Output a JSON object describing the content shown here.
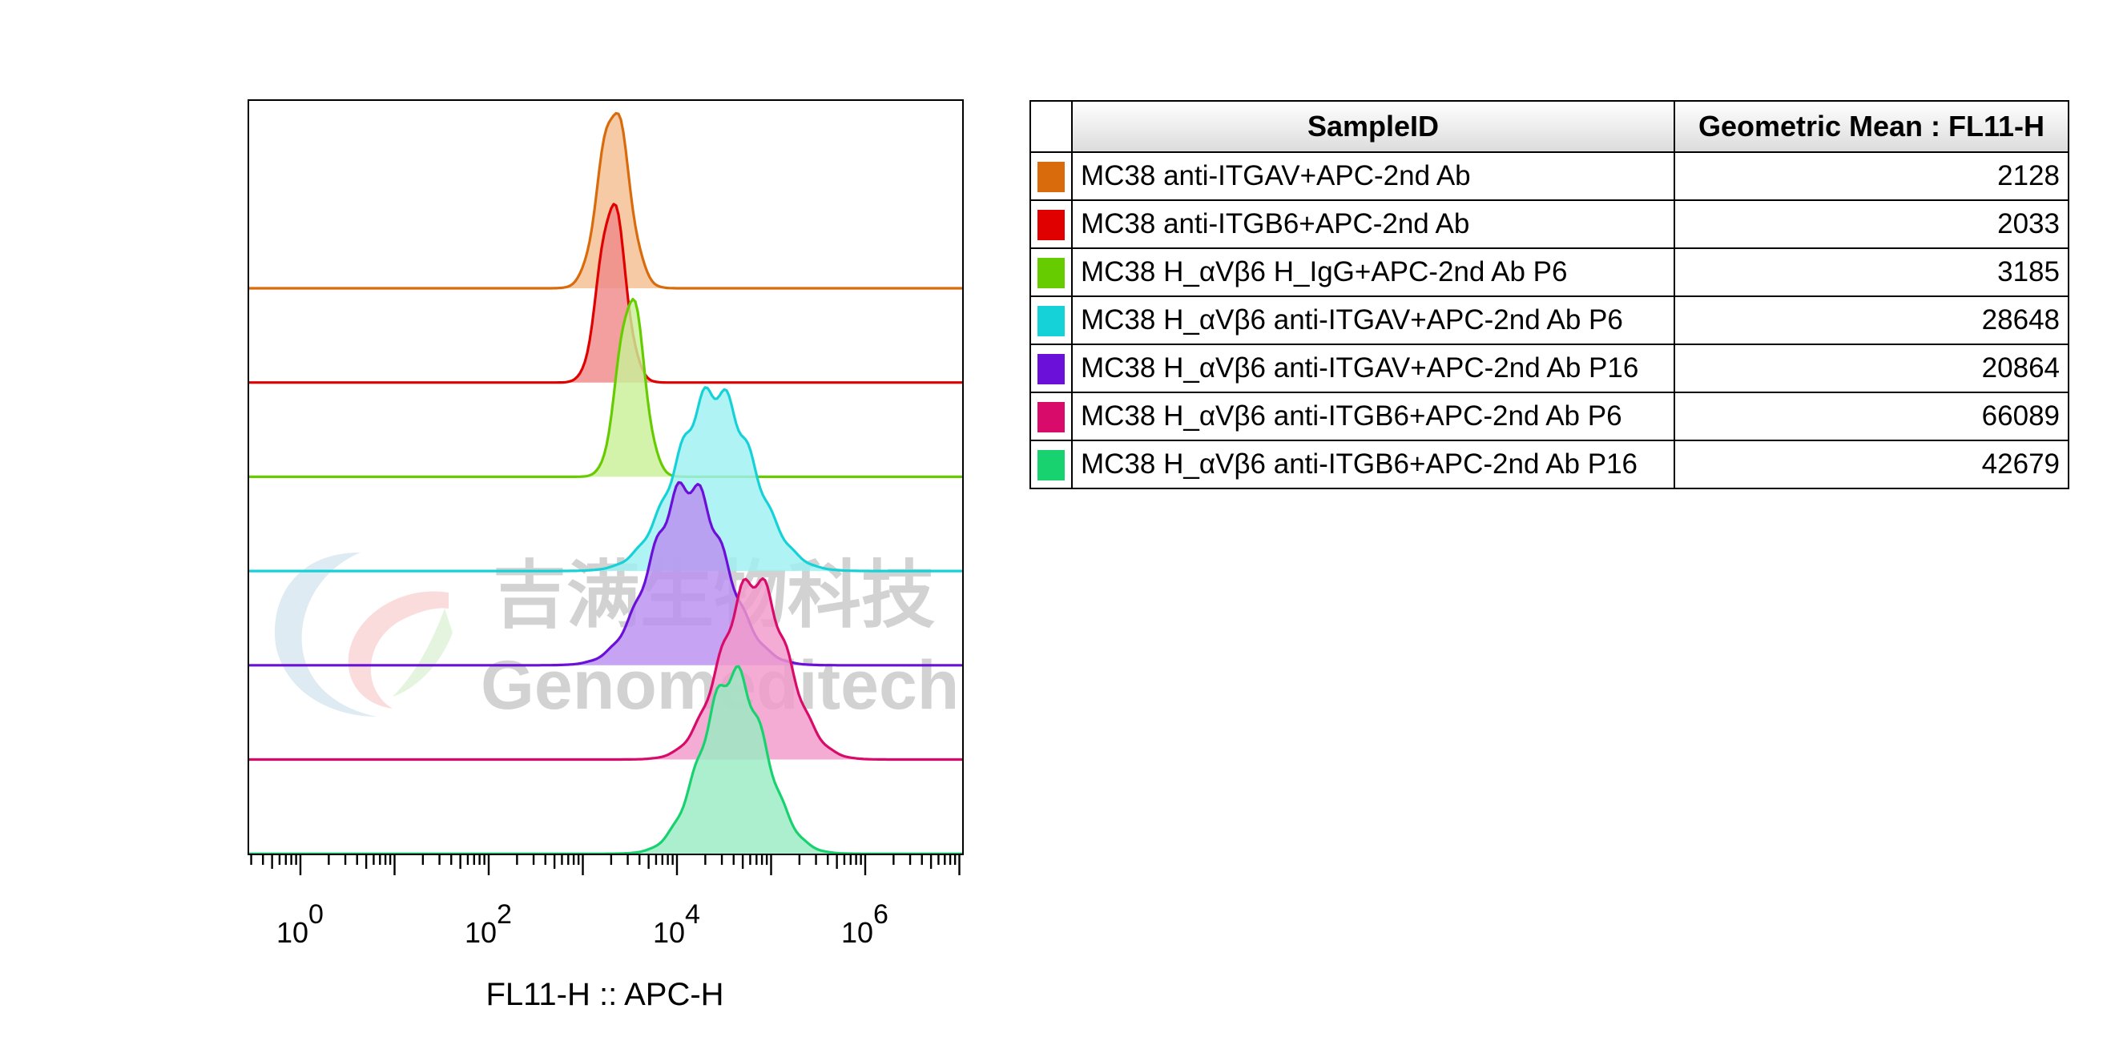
{
  "chart_data": {
    "type": "histogram-overlay",
    "xlabel": "FL11-H :: APC-H",
    "x_scale": "biexponential",
    "x_ticks": [
      {
        "base": "10",
        "exp": "0",
        "value": 1
      },
      {
        "base": "10",
        "exp": "2",
        "value": 100
      },
      {
        "base": "10",
        "exp": "4",
        "value": 10000
      },
      {
        "base": "10",
        "exp": "6",
        "value": 1000000
      }
    ],
    "series": [
      {
        "name": "MC38 anti-ITGAV+APC-2nd Ab",
        "color": "#d96b0c",
        "fill": "#f3be90",
        "geometric_mean": "2128",
        "peak_log10": 3.33,
        "width_log10": 0.16
      },
      {
        "name": "MC38 anti-ITGB6+APC-2nd Ab",
        "color": "#e00000",
        "fill": "#f08a8a",
        "geometric_mean": "2033",
        "peak_log10": 3.31,
        "width_log10": 0.14
      },
      {
        "name": "MC38 H_αVβ6 H_IgG+APC-2nd Ab P6",
        "color": "#66cc00",
        "fill": "#c9ef97",
        "geometric_mean": "3185",
        "peak_log10": 3.51,
        "width_log10": 0.14
      },
      {
        "name": "MC38 H_αVβ6 anti-ITGAV+APC-2nd Ab P6",
        "color": "#14d2d8",
        "fill": "#9ff0f2",
        "geometric_mean": "28648",
        "peak_log10": 4.4,
        "width_log10": 0.4
      },
      {
        "name": "MC38 H_αVβ6 anti-ITGAV+APC-2nd Ab P16",
        "color": "#6a10d8",
        "fill": "#b98ff0",
        "geometric_mean": "20864",
        "peak_log10": 4.12,
        "width_log10": 0.38
      },
      {
        "name": "MC38 H_αVβ6 anti-ITGB6+APC-2nd Ab P6",
        "color": "#d80a6a",
        "fill": "#f19acb",
        "geometric_mean": "66089",
        "peak_log10": 4.82,
        "width_log10": 0.34
      },
      {
        "name": "MC38 H_αVβ6 anti-ITGB6+APC-2nd Ab P16",
        "color": "#17d26e",
        "fill": "#98ecc3",
        "geometric_mean": "42679",
        "peak_log10": 4.6,
        "width_log10": 0.33
      }
    ]
  },
  "table": {
    "header_sample": "SampleID",
    "header_metric": "Geometric Mean : FL11-H"
  },
  "watermark": {
    "cn": "吉满生物科技",
    "en": "Genomeditech"
  }
}
